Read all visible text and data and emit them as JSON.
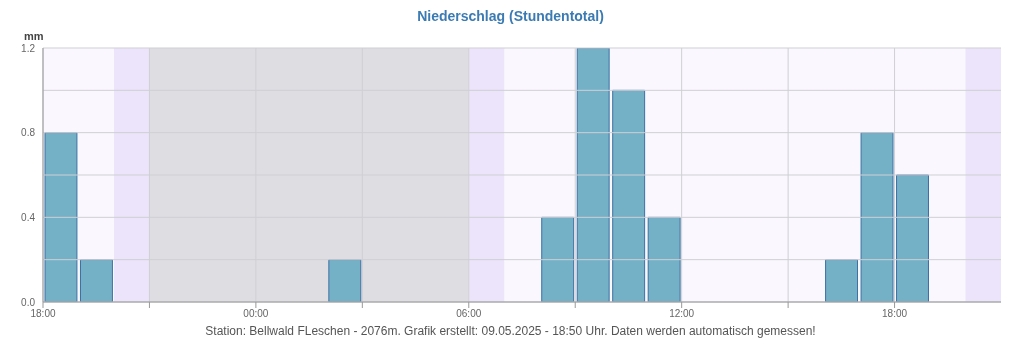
{
  "chart_data": {
    "type": "bar",
    "title": "Niederschlag (Stundentotal)",
    "ylabel": "mm",
    "x": [
      "2025-05-08T18:30",
      "2025-05-08T19:30",
      "2025-05-08T20:30",
      "2025-05-08T21:30",
      "2025-05-08T22:30",
      "2025-05-08T23:30",
      "2025-05-09T00:30",
      "2025-05-09T01:30",
      "2025-05-09T02:30",
      "2025-05-09T03:30",
      "2025-05-09T04:30",
      "2025-05-09T05:30",
      "2025-05-09T06:30",
      "2025-05-09T07:30",
      "2025-05-09T08:30",
      "2025-05-09T09:30",
      "2025-05-09T10:30",
      "2025-05-09T11:30",
      "2025-05-09T12:30",
      "2025-05-09T13:30",
      "2025-05-09T14:30",
      "2025-05-09T15:30",
      "2025-05-09T16:30",
      "2025-05-09T17:30",
      "2025-05-09T18:30",
      "2025-05-09T19:30",
      "2025-05-09T20:30"
    ],
    "values": [
      0.8,
      0.2,
      0,
      0,
      0,
      0,
      0,
      0,
      0.2,
      0,
      0,
      0,
      0,
      0,
      0.4,
      1.2,
      1.0,
      0.4,
      0,
      0,
      0,
      0,
      0.2,
      0.8,
      0.6,
      0,
      0
    ],
    "color": "#74b1c7",
    "xlim": [
      "2025-05-08T18:00",
      "2025-05-09T21:00"
    ],
    "xticks": [
      {
        "value": "2025-05-08T18:00",
        "label": "18:00"
      },
      {
        "value": "2025-05-08T21:00",
        "label": null
      },
      {
        "value": "2025-05-09T00:00",
        "label": "00:00"
      },
      {
        "value": "2025-05-09T03:00",
        "label": null
      },
      {
        "value": "2025-05-09T06:00",
        "label": "06:00"
      },
      {
        "value": "2025-05-09T09:00",
        "label": null
      },
      {
        "value": "2025-05-09T12:00",
        "label": "12:00"
      },
      {
        "value": "2025-05-09T15:00",
        "label": null
      },
      {
        "value": "2025-05-09T18:00",
        "label": "18:00"
      }
    ],
    "ylim": [
      0,
      1.2
    ],
    "yticks": [
      {
        "value": 0,
        "label": "0.0"
      },
      {
        "value": 0.2,
        "label": null
      },
      {
        "value": 0.4,
        "label": "0.4"
      },
      {
        "value": 0.6,
        "label": null
      },
      {
        "value": 0.8,
        "label": "0.8"
      },
      {
        "value": 1.0,
        "label": null
      },
      {
        "value": 1.2,
        "label": "1.2"
      }
    ],
    "grid": true,
    "bands": [
      {
        "axis": "x",
        "from": "2025-05-08T20:00",
        "to": "2025-05-08T21:00",
        "color": "#ece4fa"
      },
      {
        "axis": "x",
        "from": "2025-05-08T21:00",
        "to": "2025-05-09T06:00",
        "color": "#dedde2"
      },
      {
        "axis": "x",
        "from": "2025-05-09T06:00",
        "to": "2025-05-09T07:00",
        "color": "#ece4fa"
      },
      {
        "axis": "x",
        "from": "2025-05-09T20:00",
        "to": "2025-05-09T21:00",
        "color": "#ece4fa"
      }
    ],
    "annotations": [
      "Station: Bellwald FLeschen - 2076m. Grafik erstellt: 09.05.2025 - 18:50 Uhr. Daten werden automatisch gemessen!"
    ]
  }
}
